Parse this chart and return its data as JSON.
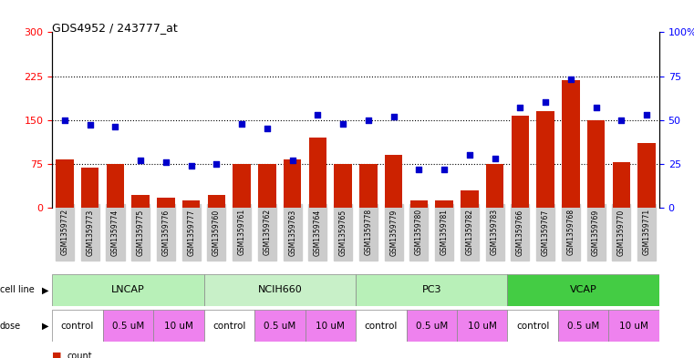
{
  "title": "GDS4952 / 243777_at",
  "samples": [
    "GSM1359772",
    "GSM1359773",
    "GSM1359774",
    "GSM1359775",
    "GSM1359776",
    "GSM1359777",
    "GSM1359760",
    "GSM1359761",
    "GSM1359762",
    "GSM1359763",
    "GSM1359764",
    "GSM1359765",
    "GSM1359778",
    "GSM1359779",
    "GSM1359780",
    "GSM1359781",
    "GSM1359782",
    "GSM1359783",
    "GSM1359766",
    "GSM1359767",
    "GSM1359768",
    "GSM1359769",
    "GSM1359770",
    "GSM1359771"
  ],
  "counts": [
    82,
    68,
    75,
    22,
    17,
    12,
    22,
    75,
    75,
    82,
    120,
    75,
    75,
    90,
    12,
    12,
    30,
    75,
    157,
    165,
    218,
    150,
    78,
    110
  ],
  "percentiles": [
    50,
    47,
    46,
    27,
    26,
    24,
    25,
    48,
    45,
    27,
    53,
    48,
    50,
    52,
    22,
    22,
    30,
    28,
    57,
    60,
    73,
    57,
    50,
    53
  ],
  "cell_line_groups": [
    {
      "label": "LNCAP",
      "start": 0,
      "end": 6,
      "color": "#b8f0b8"
    },
    {
      "label": "NCIH660",
      "start": 6,
      "end": 12,
      "color": "#c8f0c8"
    },
    {
      "label": "PC3",
      "start": 12,
      "end": 18,
      "color": "#b8f0b8"
    },
    {
      "label": "VCAP",
      "start": 18,
      "end": 24,
      "color": "#44cc44"
    }
  ],
  "dose_groups": [
    {
      "label": "control",
      "start": 0,
      "end": 2,
      "color": "#ffffff"
    },
    {
      "label": "0.5 uM",
      "start": 2,
      "end": 4,
      "color": "#ee82ee"
    },
    {
      "label": "10 uM",
      "start": 4,
      "end": 6,
      "color": "#ee82ee"
    },
    {
      "label": "control",
      "start": 6,
      "end": 8,
      "color": "#ffffff"
    },
    {
      "label": "0.5 uM",
      "start": 8,
      "end": 10,
      "color": "#ee82ee"
    },
    {
      "label": "10 uM",
      "start": 10,
      "end": 12,
      "color": "#ee82ee"
    },
    {
      "label": "control",
      "start": 12,
      "end": 14,
      "color": "#ffffff"
    },
    {
      "label": "0.5 uM",
      "start": 14,
      "end": 16,
      "color": "#ee82ee"
    },
    {
      "label": "10 uM",
      "start": 16,
      "end": 18,
      "color": "#ee82ee"
    },
    {
      "label": "control",
      "start": 18,
      "end": 20,
      "color": "#ffffff"
    },
    {
      "label": "0.5 uM",
      "start": 20,
      "end": 22,
      "color": "#ee82ee"
    },
    {
      "label": "10 uM",
      "start": 22,
      "end": 24,
      "color": "#ee82ee"
    }
  ],
  "bar_color": "#cc2200",
  "dot_color": "#0000cc",
  "ylim_left": [
    0,
    300
  ],
  "ylim_right": [
    0,
    100
  ],
  "yticks_left": [
    0,
    75,
    150,
    225,
    300
  ],
  "yticks_right": [
    0,
    25,
    50,
    75,
    100
  ],
  "hlines": [
    75,
    150,
    225
  ],
  "legend_count_color": "#cc2200",
  "legend_dot_color": "#0000cc",
  "xticklabel_bg": "#d0d0d0"
}
